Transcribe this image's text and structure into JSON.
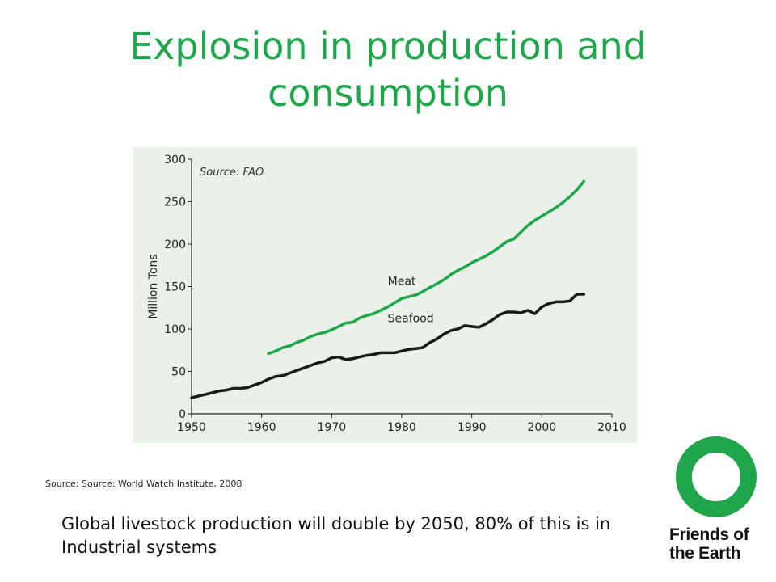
{
  "slide": {
    "title": "Explosion in production and consumption",
    "source_caption": "Source: Source: World Watch Institute, 2008",
    "body_text": "Global livestock production will double by 2050, 80% of this is in Industrial systems"
  },
  "logo": {
    "line1": "Friends of",
    "line2": "the Earth",
    "color": "#1fa64a"
  },
  "chart_data": {
    "type": "line",
    "annotation": "Source: FAO",
    "ylabel": "Million Tons",
    "xlabel": "",
    "xlim": [
      1950,
      2010
    ],
    "ylim": [
      0,
      300
    ],
    "x_ticks": [
      1950,
      1960,
      1970,
      1980,
      1990,
      2000,
      2010
    ],
    "y_ticks": [
      0,
      50,
      100,
      150,
      200,
      250,
      300
    ],
    "series": [
      {
        "name": "Meat",
        "color": "#1fa64a",
        "x": [
          1961,
          1962,
          1963,
          1964,
          1965,
          1966,
          1967,
          1968,
          1969,
          1970,
          1971,
          1972,
          1973,
          1974,
          1975,
          1976,
          1977,
          1978,
          1979,
          1980,
          1981,
          1982,
          1983,
          1984,
          1985,
          1986,
          1987,
          1988,
          1989,
          1990,
          1991,
          1992,
          1993,
          1994,
          1995,
          1996,
          1997,
          1998,
          1999,
          2000,
          2001,
          2002,
          2003,
          2004,
          2005,
          2006
        ],
        "values": [
          71,
          74,
          78,
          80,
          84,
          87,
          91,
          94,
          96,
          99,
          103,
          107,
          108,
          113,
          116,
          118,
          122,
          126,
          131,
          136,
          138,
          140,
          144,
          149,
          153,
          158,
          164,
          169,
          173,
          178,
          182,
          186,
          191,
          197,
          203,
          206,
          214,
          222,
          228,
          233,
          238,
          243,
          249,
          256,
          264,
          274
        ]
      },
      {
        "name": "Seafood",
        "color": "#1a1a1a",
        "x": [
          1950,
          1951,
          1952,
          1953,
          1954,
          1955,
          1956,
          1957,
          1958,
          1959,
          1960,
          1961,
          1962,
          1963,
          1964,
          1965,
          1966,
          1967,
          1968,
          1969,
          1970,
          1971,
          1972,
          1973,
          1974,
          1975,
          1976,
          1977,
          1978,
          1979,
          1980,
          1981,
          1982,
          1983,
          1984,
          1985,
          1986,
          1987,
          1988,
          1989,
          1990,
          1991,
          1992,
          1993,
          1994,
          1995,
          1996,
          1997,
          1998,
          1999,
          2000,
          2001,
          2002,
          2003,
          2004,
          2005,
          2006
        ],
        "values": [
          19,
          21,
          23,
          25,
          27,
          28,
          30,
          30,
          31,
          34,
          37,
          41,
          44,
          45,
          48,
          51,
          54,
          57,
          60,
          62,
          66,
          67,
          64,
          65,
          67,
          69,
          70,
          72,
          72,
          72,
          74,
          76,
          77,
          78,
          84,
          88,
          94,
          98,
          100,
          104,
          103,
          102,
          106,
          111,
          117,
          120,
          120,
          119,
          122,
          118,
          126,
          130,
          132,
          132,
          133,
          141,
          141
        ]
      }
    ]
  }
}
